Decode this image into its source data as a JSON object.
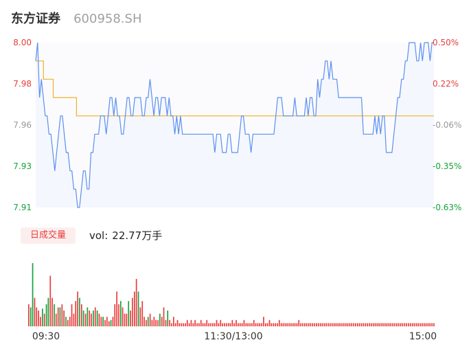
{
  "header": {
    "name": "东方证券",
    "code": "600958.SH"
  },
  "volume": {
    "badge": "日成交量",
    "prefix": "vol:",
    "value": "22.77万手"
  },
  "colors": {
    "up": "#e83c3c",
    "down": "#14a33a",
    "price_line": "#5b8ff0",
    "avg_line": "#f0b12a",
    "area_fill": "#f4f7fd",
    "neutral_label": "#999999"
  },
  "chart_data": [
    {
      "type": "line",
      "title": "",
      "price_axis": {
        "ticks": [
          "8.00",
          "7.98",
          "7.96",
          "7.93",
          "7.91"
        ],
        "ylim": [
          7.91,
          8.0
        ]
      },
      "pct_axis": {
        "ticks": [
          "0.50%",
          "0.22%",
          "-0.06%",
          "-0.35%",
          "-0.63%"
        ]
      },
      "x_ticks": [
        "09:30",
        "11:30/13:00",
        "15:00"
      ],
      "series": [
        {
          "role": "price",
          "values": [
            7.99,
            8.0,
            7.97,
            7.98,
            7.97,
            7.96,
            7.96,
            7.95,
            7.95,
            7.94,
            7.93,
            7.94,
            7.95,
            7.96,
            7.96,
            7.95,
            7.94,
            7.94,
            7.93,
            7.93,
            7.92,
            7.92,
            7.91,
            7.91,
            7.92,
            7.93,
            7.93,
            7.92,
            7.92,
            7.94,
            7.94,
            7.95,
            7.95,
            7.95,
            7.96,
            7.96,
            7.96,
            7.95,
            7.96,
            7.97,
            7.97,
            7.96,
            7.97,
            7.96,
            7.96,
            7.95,
            7.95,
            7.96,
            7.97,
            7.97,
            7.96,
            7.96,
            7.97,
            7.97,
            7.97,
            7.97,
            7.96,
            7.96,
            7.97,
            7.97,
            7.98,
            7.97,
            7.96,
            7.97,
            7.97,
            7.96,
            7.97,
            7.97,
            7.97,
            7.96,
            7.97,
            7.96,
            7.96,
            7.95,
            7.96,
            7.95,
            7.96,
            7.95,
            7.95,
            7.95,
            7.95,
            7.95,
            7.95,
            7.95,
            7.95,
            7.95,
            7.95,
            7.95,
            7.95,
            7.95,
            7.95,
            7.95,
            7.95,
            7.95,
            7.94,
            7.95,
            7.95,
            7.95,
            7.94,
            7.94,
            7.94,
            7.95,
            7.95,
            7.94,
            7.94,
            7.94,
            7.94,
            7.95,
            7.96,
            7.96,
            7.95,
            7.95,
            7.95,
            7.94,
            7.95,
            7.95,
            7.95,
            7.95,
            7.95,
            7.95,
            7.95,
            7.95,
            7.95,
            7.95,
            7.95,
            7.95,
            7.96,
            7.97,
            7.97,
            7.97,
            7.96,
            7.96,
            7.96,
            7.96,
            7.96,
            7.96,
            7.97,
            7.96,
            7.96,
            7.96,
            7.96,
            7.96,
            7.97,
            7.96,
            7.97,
            7.97,
            7.96,
            7.96,
            7.98,
            7.97,
            7.98,
            7.98,
            7.99,
            7.99,
            7.98,
            7.99,
            7.98,
            7.98,
            7.98,
            7.97,
            7.97,
            7.97,
            7.97,
            7.97,
            7.97,
            7.97,
            7.97,
            7.97,
            7.97,
            7.97,
            7.97,
            7.97,
            7.95,
            7.95,
            7.95,
            7.95,
            7.95,
            7.95,
            7.96,
            7.95,
            7.96,
            7.95,
            7.96,
            7.96,
            7.94,
            7.94,
            7.94,
            7.94,
            7.95,
            7.96,
            7.97,
            7.97,
            7.98,
            7.98,
            7.99,
            7.99,
            8.0,
            8.0,
            8.0,
            8.0,
            7.99,
            7.99,
            8.0,
            7.99,
            8.0,
            8.0,
            8.0,
            7.99,
            8.0,
            8.0
          ]
        },
        {
          "role": "average",
          "values": [
            7.99,
            7.99,
            7.99,
            7.99,
            7.98,
            7.98,
            7.98,
            7.98,
            7.98,
            7.97,
            7.97,
            7.97,
            7.97,
            7.97,
            7.97,
            7.97,
            7.97,
            7.97,
            7.97,
            7.97,
            7.97,
            7.96,
            7.96,
            7.96,
            7.96,
            7.96,
            7.96,
            7.96,
            7.96,
            7.96,
            7.96,
            7.96,
            7.96,
            7.96,
            7.96,
            7.96,
            7.96,
            7.96,
            7.96,
            7.96,
            7.96,
            7.96,
            7.96,
            7.96,
            7.96,
            7.96,
            7.96,
            7.96,
            7.96,
            7.96,
            7.96,
            7.96,
            7.96,
            7.96,
            7.96,
            7.96,
            7.96,
            7.96,
            7.96,
            7.96,
            7.96,
            7.96,
            7.96,
            7.96,
            7.96,
            7.96,
            7.96,
            7.96,
            7.96,
            7.96,
            7.96,
            7.96,
            7.96,
            7.96,
            7.96,
            7.96,
            7.96,
            7.96,
            7.96,
            7.96,
            7.96,
            7.96,
            7.96,
            7.96,
            7.96,
            7.96,
            7.96,
            7.96,
            7.96,
            7.96,
            7.96,
            7.96,
            7.96,
            7.96,
            7.96,
            7.96,
            7.96,
            7.96,
            7.96,
            7.96,
            7.96,
            7.96,
            7.96,
            7.96,
            7.96,
            7.96,
            7.96,
            7.96,
            7.96,
            7.96,
            7.96,
            7.96,
            7.96,
            7.96,
            7.96,
            7.96,
            7.96,
            7.96,
            7.96,
            7.96,
            7.96,
            7.96,
            7.96,
            7.96,
            7.96,
            7.96,
            7.96,
            7.96,
            7.96,
            7.96,
            7.96,
            7.96,
            7.96,
            7.96,
            7.96,
            7.96,
            7.96,
            7.96,
            7.96,
            7.96,
            7.96,
            7.96,
            7.96,
            7.96,
            7.96,
            7.96,
            7.96,
            7.96,
            7.96,
            7.96,
            7.96,
            7.96,
            7.96,
            7.96,
            7.96,
            7.96,
            7.96,
            7.96,
            7.96,
            7.96,
            7.96,
            7.96,
            7.96,
            7.96,
            7.96,
            7.96,
            7.96,
            7.96,
            7.96,
            7.96,
            7.96,
            7.96,
            7.96,
            7.96,
            7.96,
            7.96,
            7.96,
            7.96,
            7.96,
            7.96,
            7.96,
            7.96,
            7.96,
            7.96,
            7.96,
            7.96,
            7.96,
            7.96,
            7.96,
            7.96,
            7.96,
            7.96,
            7.96,
            7.96,
            7.96,
            7.96,
            7.96,
            7.96,
            7.96,
            7.96,
            7.96,
            7.96,
            7.96,
            7.96,
            7.96,
            7.96
          ]
        }
      ]
    },
    {
      "type": "bar",
      "title": "",
      "volume_values": [
        0.35,
        0.3,
        1.0,
        0.45,
        0.3,
        0.25,
        0.15,
        0.28,
        0.2,
        0.35,
        0.45,
        0.8,
        0.45,
        0.35,
        0.2,
        0.3,
        0.3,
        0.35,
        0.25,
        0.15,
        0.1,
        0.15,
        0.35,
        0.2,
        0.4,
        0.55,
        0.45,
        0.35,
        0.25,
        0.2,
        0.3,
        0.25,
        0.2,
        0.25,
        0.3,
        0.25,
        0.2,
        0.15,
        0.15,
        0.1,
        0.15,
        0.08,
        0.1,
        0.15,
        0.35,
        0.55,
        0.35,
        0.4,
        0.3,
        0.2,
        0.2,
        0.4,
        0.25,
        0.45,
        0.55,
        0.75,
        0.55,
        0.3,
        0.4,
        0.15,
        0.1,
        0.15,
        0.2,
        0.1,
        0.15,
        0.1,
        0.1,
        0.2,
        0.15,
        0.3,
        0.1,
        0.25,
        0.1,
        0.05,
        0.15,
        0.05,
        0.1,
        0.05,
        0.05,
        0.05,
        0.05,
        0.1,
        0.05,
        0.1,
        0.05,
        0.1,
        0.05,
        0.05,
        0.1,
        0.05,
        0.05,
        0.1,
        0.05,
        0.05,
        0.05,
        0.05,
        0.1,
        0.05,
        0.1,
        0.05,
        0.05,
        0.05,
        0.05,
        0.05,
        0.1,
        0.05,
        0.1,
        0.05,
        0.05,
        0.05,
        0.1,
        0.05,
        0.05,
        0.05,
        0.05,
        0.1,
        0.05,
        0.05,
        0.05,
        0.05,
        0.15,
        0.05,
        0.05,
        0.1,
        0.05,
        0.05,
        0.05,
        0.05,
        0.1,
        0.05,
        0.05,
        0.05,
        0.05,
        0.05,
        0.05,
        0.05,
        0.05,
        0.05,
        0.1,
        0.05,
        0.05,
        0.05,
        0.05,
        0.05,
        0.05,
        0.05,
        0.05,
        0.05,
        0.05,
        0.05,
        0.05,
        0.05,
        0.05,
        0.05,
        0.05,
        0.05,
        0.05,
        0.05,
        0.05,
        0.05,
        0.05,
        0.05,
        0.05,
        0.05,
        0.05,
        0.05,
        0.05,
        0.05,
        0.05,
        0.05,
        0.05,
        0.05,
        0.05,
        0.05,
        0.05,
        0.05,
        0.05,
        0.05,
        0.05,
        0.05,
        0.05,
        0.05,
        0.05,
        0.05,
        0.05,
        0.05,
        0.05,
        0.05,
        0.05,
        0.05,
        0.05,
        0.05,
        0.05,
        0.05,
        0.05,
        0.05,
        0.05,
        0.05,
        0.05,
        0.05,
        0.05,
        0.05,
        0.05,
        0.05,
        0.05,
        0.05,
        0.05,
        0.05
      ],
      "volume_dirs": [
        "u",
        "d",
        "d",
        "u",
        "u",
        "u",
        "u",
        "d",
        "u",
        "d",
        "d",
        "u",
        "u",
        "d",
        "u",
        "u",
        "d",
        "u",
        "u",
        "d",
        "u",
        "u",
        "u",
        "u",
        "u",
        "u",
        "d",
        "u",
        "d",
        "u",
        "d",
        "u",
        "u",
        "d",
        "u",
        "d",
        "u",
        "u",
        "d",
        "u",
        "u",
        "u",
        "d",
        "u",
        "u",
        "u",
        "u",
        "d",
        "u",
        "u",
        "u",
        "d",
        "u",
        "u",
        "u",
        "u",
        "d",
        "u",
        "u",
        "u",
        "u",
        "d",
        "u",
        "u",
        "u",
        "u",
        "u",
        "d",
        "u",
        "u",
        "u",
        "d",
        "u",
        "u",
        "u",
        "u",
        "u",
        "u",
        "u",
        "u",
        "u",
        "u",
        "u",
        "u",
        "u",
        "u",
        "u",
        "u",
        "u",
        "u",
        "u",
        "u",
        "u",
        "u",
        "u",
        "u",
        "u",
        "u",
        "u",
        "u",
        "u",
        "u",
        "u",
        "u",
        "u",
        "u",
        "u",
        "u",
        "u",
        "u",
        "u",
        "u",
        "u",
        "u",
        "u",
        "u",
        "u",
        "u",
        "u",
        "u",
        "u",
        "u",
        "u",
        "u",
        "u",
        "u",
        "u",
        "u",
        "u",
        "u",
        "u",
        "u",
        "u",
        "u",
        "u",
        "u",
        "u",
        "u",
        "u",
        "u",
        "u",
        "u",
        "u",
        "u",
        "u",
        "u",
        "u",
        "u",
        "u",
        "u",
        "u",
        "u",
        "u",
        "u",
        "u",
        "u",
        "u",
        "u",
        "u",
        "u",
        "u",
        "u",
        "u",
        "u",
        "u",
        "u",
        "u",
        "u",
        "u",
        "u",
        "u",
        "u",
        "u",
        "u",
        "u",
        "u",
        "u",
        "u",
        "u",
        "u",
        "u",
        "u",
        "u",
        "u",
        "u",
        "u",
        "u",
        "u",
        "u",
        "u",
        "u",
        "u",
        "u",
        "u",
        "u",
        "u",
        "u",
        "u",
        "u",
        "u",
        "u",
        "u",
        "u",
        "u",
        "u",
        "u",
        "u",
        "u"
      ]
    }
  ]
}
